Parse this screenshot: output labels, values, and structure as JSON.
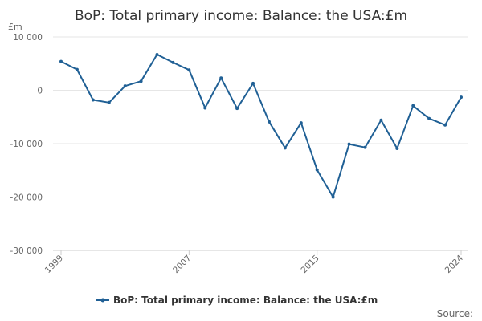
{
  "chart_data": {
    "type": "line",
    "title": "BoP: Total primary income: Balance: the USA:£m",
    "ylabel": "£m",
    "source_label": "Source:",
    "x": [
      1999,
      2000,
      2001,
      2002,
      2003,
      2004,
      2005,
      2006,
      2007,
      2008,
      2009,
      2010,
      2011,
      2012,
      2013,
      2014,
      2015,
      2016,
      2017,
      2018,
      2019,
      2020,
      2021,
      2022,
      2023,
      2024
    ],
    "xticks": [
      1999,
      2007,
      2015,
      2024
    ],
    "xtick_labels": [
      "1999",
      "2007",
      "2015",
      "2024"
    ],
    "yticks": [
      10000,
      0,
      -10000,
      -20000,
      -30000
    ],
    "ytick_labels": [
      "10 000",
      "0",
      "-10 000",
      "-20 000",
      "-30 000"
    ],
    "ylim": [
      -30000,
      10000
    ],
    "xlim": [
      1999,
      2024
    ],
    "grid": true,
    "legend_position": "bottom",
    "series": [
      {
        "name": "BoP: Total primary income: Balance: the USA:£m",
        "color": "#206095",
        "values": [
          5400,
          3900,
          -1800,
          -2300,
          800,
          1700,
          6700,
          5200,
          3800,
          -3300,
          2300,
          -3400,
          1300,
          -5900,
          -10800,
          -6100,
          -14900,
          -20000,
          -10100,
          -10700,
          -5600,
          -10900,
          -2900,
          -5300,
          -6500,
          -1300
        ]
      }
    ]
  }
}
